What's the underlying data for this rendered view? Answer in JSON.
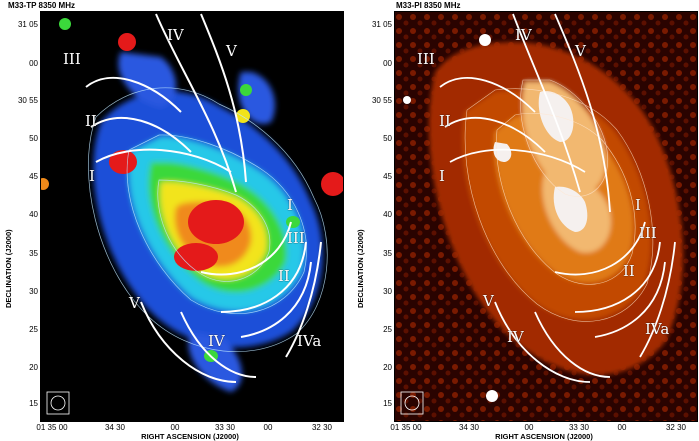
{
  "panels": [
    {
      "title": "M33-TP  8350 MHz",
      "yticks": [
        "31 05",
        "00",
        "30 55",
        "50",
        "45",
        "40",
        "35",
        "30",
        "25",
        "20",
        "15"
      ],
      "xticks": [
        "01 35 00",
        "34 30",
        "00",
        "33 30",
        "00",
        "32 30"
      ],
      "xlabel": "RIGHT ASCENSION (J2000)",
      "ylabel": "DECLINATION (J2000)",
      "arms": [
        "IV",
        "V",
        "III",
        "II",
        "I",
        "I",
        "III",
        "II",
        "V",
        "IV",
        "IVa"
      ]
    },
    {
      "title": "M33-PI  8350 MHz",
      "yticks": [
        "31 05",
        "00",
        "30 55",
        "50",
        "45",
        "40",
        "35",
        "30",
        "25",
        "20",
        "15"
      ],
      "xticks": [
        "01 35 00",
        "34 30",
        "00",
        "33 30",
        "00",
        "32 30"
      ],
      "xlabel": "RIGHT ASCENSION (J2000)",
      "ylabel": "DECLINATION (J2000)",
      "arms": [
        "IV",
        "V",
        "III",
        "II",
        "I",
        "I",
        "III",
        "II",
        "V",
        "IV",
        "IVa"
      ]
    }
  ]
}
